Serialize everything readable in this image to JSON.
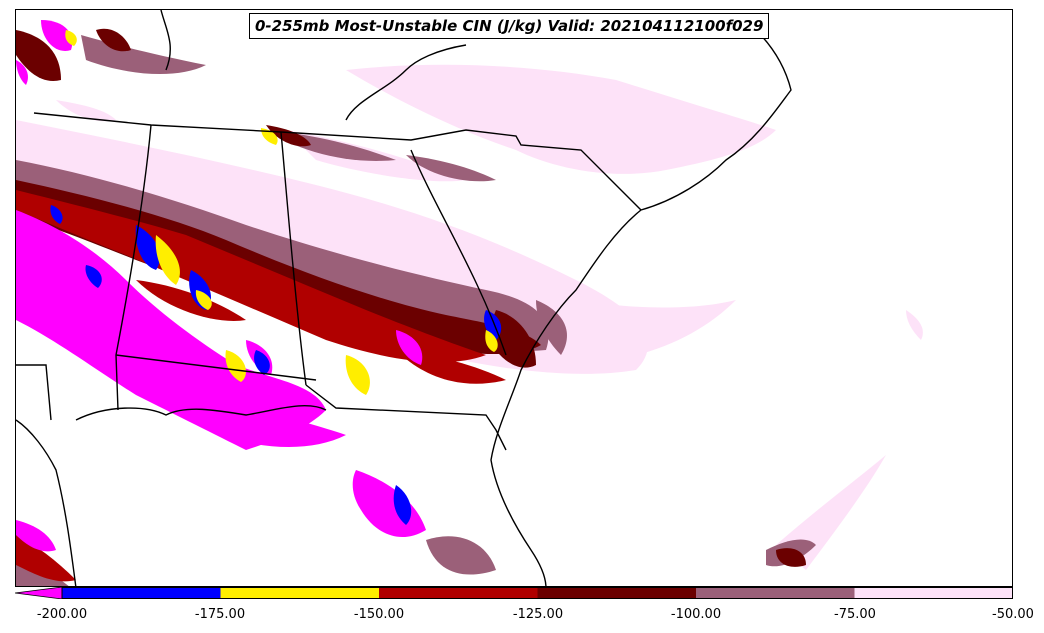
{
  "title": "0-255mb Most-Unstable CIN (J/kg) Valid: 202104112100f029",
  "colorbar": {
    "extend": "min",
    "bins": [
      {
        "from": -200,
        "to": -175,
        "color": "#0000ff"
      },
      {
        "from": -175,
        "to": -150,
        "color": "#ffee00"
      },
      {
        "from": -150,
        "to": -125,
        "color": "#b00000"
      },
      {
        "from": -125,
        "to": -100,
        "color": "#6b0000"
      },
      {
        "from": -100,
        "to": -75,
        "color": "#9b6079"
      },
      {
        "from": -75,
        "to": -50,
        "color": "#fde2f8"
      }
    ],
    "under_color": "#ff00ff",
    "ticks": [
      "-200.00",
      "-175.00",
      "-150.00",
      "-125.00",
      "-100.00",
      "-75.00",
      "-50.00"
    ]
  },
  "legend_colors": {
    "lt_-200": "#ff00ff",
    "m200_m175": "#0000ff",
    "m175_m150": "#ffee00",
    "m150_m125": "#b00000",
    "m125_m100": "#6b0000",
    "m100_m75": "#9b6079",
    "m75_m50": "#fde2f8"
  }
}
